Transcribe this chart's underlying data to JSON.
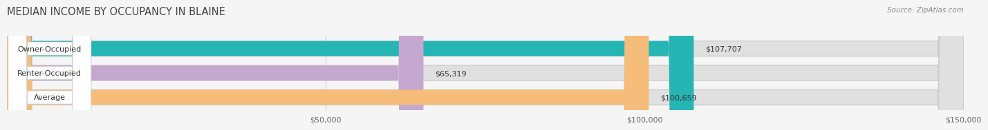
{
  "title": "MEDIAN INCOME BY OCCUPANCY IN BLAINE",
  "source": "Source: ZipAtlas.com",
  "categories": [
    "Owner-Occupied",
    "Renter-Occupied",
    "Average"
  ],
  "values": [
    107707,
    65319,
    100659
  ],
  "bar_colors": [
    "#26b5b5",
    "#c4a8d0",
    "#f5bc7a"
  ],
  "bar_labels": [
    "$107,707",
    "$65,319",
    "$100,659"
  ],
  "xlim": [
    0,
    150000
  ],
  "xticks": [
    0,
    50000,
    100000,
    150000
  ],
  "xtick_labels": [
    "$50,000",
    "$100,000",
    "$150,000"
  ],
  "background_color": "#f5f5f5",
  "bar_bg_color": "#e0e0e0",
  "title_fontsize": 10.5,
  "source_fontsize": 7.5,
  "label_fontsize": 8,
  "value_fontsize": 8,
  "tick_fontsize": 8
}
